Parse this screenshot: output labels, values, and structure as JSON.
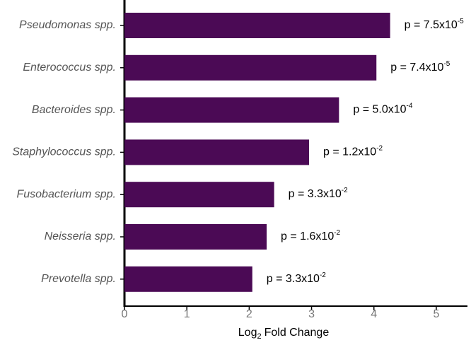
{
  "chart_data": {
    "type": "hbar",
    "categories": [
      "Pseudomonas spp.",
      "Enterococcus spp.",
      "Bacteroides spp.",
      "Staphylococcus spp.",
      "Fusobacterium spp.",
      "Neisseria spp.",
      "Prevotella spp."
    ],
    "values": [
      4.26,
      4.04,
      3.44,
      2.96,
      2.4,
      2.28,
      2.05
    ],
    "p_labels": [
      {
        "text": "p = 7.5x10",
        "exponent": "-5"
      },
      {
        "text": "p = 7.4x10",
        "exponent": "-5"
      },
      {
        "text": "p = 5.0x10",
        "exponent": "-4"
      },
      {
        "text": "p = 1.2x10",
        "exponent": "-2"
      },
      {
        "text": "p = 3.3x10",
        "exponent": "-2"
      },
      {
        "text": "p = 1.6x10",
        "exponent": "-2"
      },
      {
        "text": "p = 3.3x10",
        "exponent": "-2"
      }
    ],
    "color": "#4b0a55",
    "x_label": {
      "base": "Log",
      "subscript": "2",
      "rest": "Fold Change"
    },
    "xlim": [
      0,
      5.5
    ],
    "xticks": [
      0,
      1,
      2,
      3,
      4,
      5
    ]
  }
}
